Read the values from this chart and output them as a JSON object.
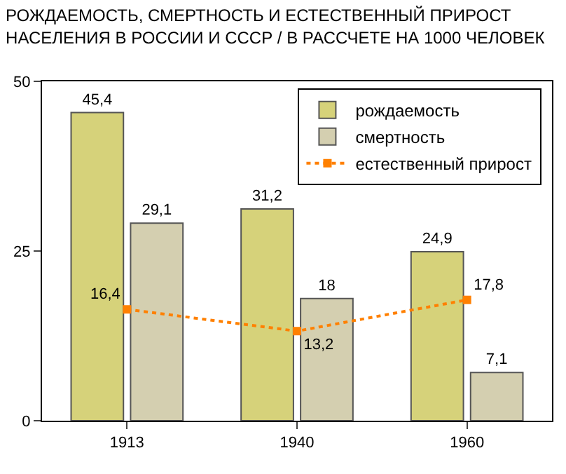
{
  "chart_data": {
    "type": "bar",
    "title": "РОЖДАЕМОСТЬ, СМЕРТНОСТЬ И ЕСТЕСТВЕННЫЙ ПРИРОСТ\nНАСЕЛЕНИЯ В РОССИИ И СССР / В РАССЧЕТЕ НА 1000 ЧЕЛОВЕК",
    "categories": [
      "1913",
      "1940",
      "1960"
    ],
    "series": [
      {
        "name": "рождаемость",
        "color": "#d6d27a",
        "values": [
          45.4,
          31.2,
          24.9
        ],
        "value_labels": [
          "45,4",
          "31,2",
          "24,9"
        ]
      },
      {
        "name": "смертность",
        "color": "#d4cfb0",
        "values": [
          29.1,
          18,
          7.1
        ],
        "value_labels": [
          "29,1",
          "18",
          "7,1"
        ]
      },
      {
        "name": "естественный прирост",
        "type": "line",
        "color": "#ff8000",
        "values": [
          16.4,
          13.2,
          17.8
        ],
        "value_labels": [
          "16,4",
          "13,2",
          "17,8"
        ],
        "marker": "square",
        "line_style": "dotted"
      }
    ],
    "ylim": [
      0,
      50
    ],
    "yticks": [
      0,
      25,
      50
    ],
    "grid": false,
    "legend": "top right"
  }
}
